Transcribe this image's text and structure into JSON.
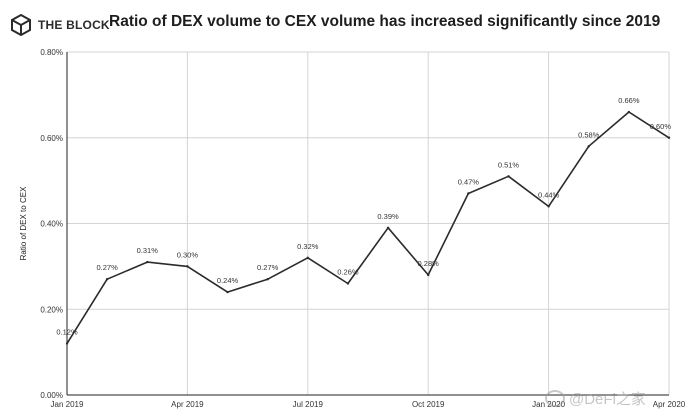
{
  "header": {
    "logo_text": "THE BLOCK",
    "title": "Ratio of DEX volume to CEX volume has increased significantly since 2019"
  },
  "watermark": {
    "text": "@DeFi之家"
  },
  "colors": {
    "line": "#2b2b2b",
    "grid": "#d4d4d4",
    "axis": "#222222"
  },
  "chart_data": {
    "type": "line",
    "title": "Ratio of DEX volume to CEX volume has increased significantly since 2019",
    "xlabel": "",
    "ylabel": "Ratio of DEX to CEX",
    "ylim": [
      0,
      0.8
    ],
    "yticks": [
      0,
      0.2,
      0.4,
      0.6,
      0.8
    ],
    "ytick_labels": [
      "0.00%",
      "0.20%",
      "0.40%",
      "0.60%",
      "0.80%"
    ],
    "x_tick_indices": [
      0,
      3,
      6,
      9,
      12,
      15
    ],
    "x_tick_labels": [
      "Jan 2019",
      "Apr 2019",
      "Jul 2019",
      "Oct 2019",
      "Jan 2020",
      "Apr 2020"
    ],
    "grid": true,
    "series": [
      {
        "name": "Ratio of DEX to CEX",
        "x": [
          "Jan 2019",
          "Feb 2019",
          "Mar 2019",
          "Apr 2019",
          "May 2019",
          "Jun 2019",
          "Jul 2019",
          "Aug 2019",
          "Sep 2019",
          "Oct 2019",
          "Nov 2019",
          "Dec 2019",
          "Jan 2020",
          "Feb 2020",
          "Mar 2020",
          "Apr 2020"
        ],
        "values": [
          0.12,
          0.27,
          0.31,
          0.3,
          0.24,
          0.27,
          0.32,
          0.26,
          0.39,
          0.28,
          0.47,
          0.51,
          0.44,
          0.58,
          0.66,
          0.6
        ],
        "labels": [
          "0.12%",
          "0.27%",
          "0.31%",
          "0.30%",
          "0.24%",
          "0.27%",
          "0.32%",
          "0.26%",
          "0.39%",
          "0.28%",
          "0.47%",
          "0.51%",
          "0.44%",
          "0.58%",
          "0.66%",
          "0.60%"
        ]
      }
    ]
  }
}
